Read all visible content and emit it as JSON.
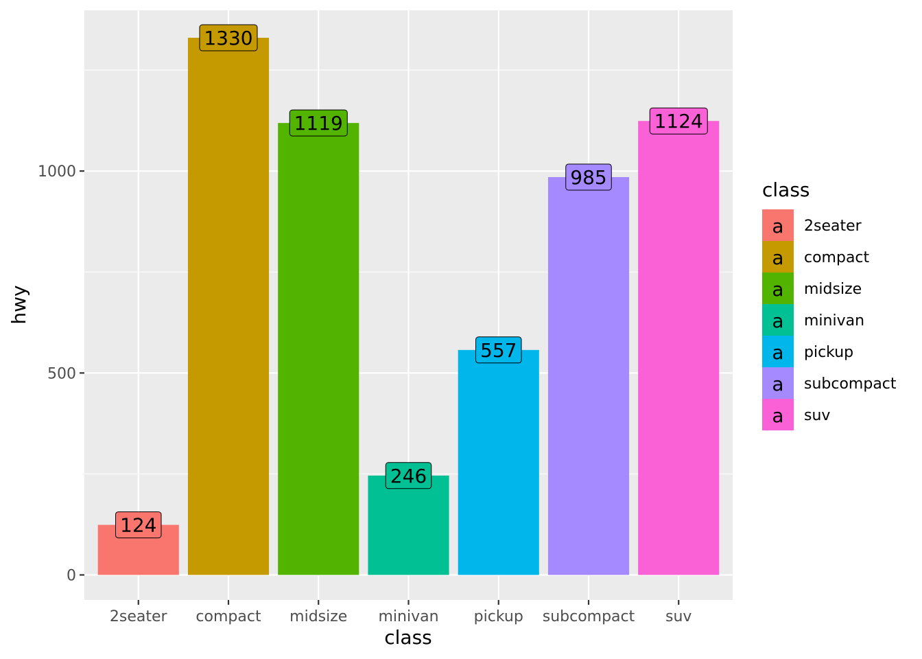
{
  "chart_data": {
    "type": "bar",
    "categories": [
      "2seater",
      "compact",
      "midsize",
      "minivan",
      "pickup",
      "subcompact",
      "suv"
    ],
    "values": [
      124,
      1330,
      1119,
      246,
      557,
      985,
      1124
    ],
    "data_labels": [
      "124",
      "1330",
      "1119",
      "246",
      "557",
      "985",
      "1124"
    ],
    "colors": [
      "#F8766D",
      "#C49A00",
      "#53B400",
      "#00C094",
      "#00B6EB",
      "#A58AFF",
      "#FB61D7"
    ],
    "xlabel": "class",
    "ylabel": "hwy",
    "ylim": [
      -62,
      1398
    ],
    "y_ticks": [
      0,
      500,
      1000
    ],
    "y_tick_labels": [
      "0",
      "500",
      "1000"
    ],
    "grid": true,
    "panel_background": "#EBEBEB",
    "legend": {
      "title": "class",
      "position": "right",
      "key_glyph": "a",
      "items": [
        "2seater",
        "compact",
        "midsize",
        "minivan",
        "pickup",
        "subcompact",
        "suv"
      ]
    }
  }
}
